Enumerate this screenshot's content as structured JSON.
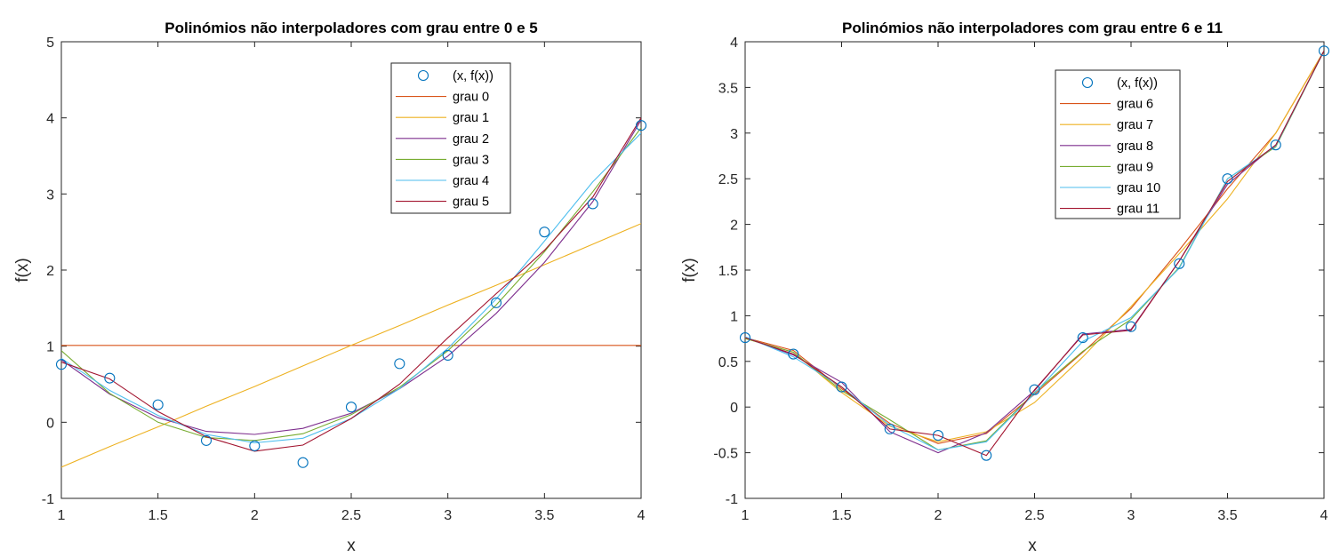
{
  "chart_data": [
    {
      "type": "line",
      "title": "Polinómios não interpoladores com grau entre 0 e 5",
      "xlabel": "x",
      "ylabel": "f(x)",
      "xlim": [
        1,
        4
      ],
      "ylim": [
        -1,
        5
      ],
      "xticks": [
        1,
        1.5,
        2,
        2.5,
        3,
        3.5,
        4
      ],
      "xtick_labels": [
        "1",
        "1.5",
        "2",
        "2.5",
        "3",
        "3.5",
        "4"
      ],
      "yticks": [
        -1,
        0,
        1,
        2,
        3,
        4,
        5
      ],
      "ytick_labels": [
        "-1",
        "0",
        "1",
        "2",
        "3",
        "4",
        "5"
      ],
      "grid": false,
      "legend_position": "top-right",
      "points": {
        "name": "(x, f(x))",
        "color": "#0072BD",
        "x": [
          1,
          1.25,
          1.5,
          1.75,
          2,
          2.25,
          2.5,
          2.75,
          3,
          3.25,
          3.5,
          3.75,
          4
        ],
        "y": [
          0.76,
          0.58,
          0.23,
          -0.24,
          -0.31,
          -0.53,
          0.2,
          0.77,
          0.88,
          1.57,
          2.5,
          2.87,
          3.9
        ]
      },
      "x": [
        1,
        1.25,
        1.5,
        1.75,
        2,
        2.25,
        2.5,
        2.75,
        3,
        3.25,
        3.5,
        3.75,
        4
      ],
      "series": [
        {
          "name": "grau 0",
          "color": "#D95319",
          "values": [
            1.01,
            1.01,
            1.01,
            1.01,
            1.01,
            1.01,
            1.01,
            1.01,
            1.01,
            1.01,
            1.01,
            1.01,
            1.01
          ]
        },
        {
          "name": "grau 1",
          "color": "#EDB120",
          "values": [
            -0.59,
            -0.32,
            -0.06,
            0.21,
            0.47,
            0.74,
            1.01,
            1.27,
            1.54,
            1.8,
            2.07,
            2.34,
            2.61
          ]
        },
        {
          "name": "grau 2",
          "color": "#7E2F8E",
          "values": [
            0.82,
            0.37,
            0.06,
            -0.12,
            -0.16,
            -0.08,
            0.12,
            0.44,
            0.87,
            1.43,
            2.1,
            2.9,
            3.97
          ]
        },
        {
          "name": "grau 3",
          "color": "#77AC30",
          "values": [
            0.94,
            0.38,
            0.0,
            -0.2,
            -0.24,
            -0.15,
            0.1,
            0.46,
            0.94,
            1.54,
            2.24,
            3.03,
            3.87
          ]
        },
        {
          "name": "grau 4",
          "color": "#4DBEEE",
          "values": [
            0.84,
            0.42,
            0.09,
            -0.16,
            -0.27,
            -0.21,
            0.05,
            0.44,
            0.97,
            1.62,
            2.38,
            3.16,
            3.8
          ]
        },
        {
          "name": "grau 5",
          "color": "#A2142F",
          "values": [
            0.79,
            0.57,
            0.14,
            -0.19,
            -0.38,
            -0.3,
            0.05,
            0.5,
            1.11,
            1.69,
            2.26,
            2.96,
            4.0
          ]
        }
      ]
    },
    {
      "type": "line",
      "title": "Polinómios não interpoladores com grau entre 6 e 11",
      "xlabel": "x",
      "ylabel": "f(x)",
      "xlim": [
        1,
        4
      ],
      "ylim": [
        -1,
        4
      ],
      "xticks": [
        1,
        1.5,
        2,
        2.5,
        3,
        3.5,
        4
      ],
      "xtick_labels": [
        "1",
        "1.5",
        "2",
        "2.5",
        "3",
        "3.5",
        "4"
      ],
      "yticks": [
        -1,
        -0.5,
        0,
        0.5,
        1,
        1.5,
        2,
        2.5,
        3,
        3.5,
        4
      ],
      "ytick_labels": [
        "-1",
        "-0.5",
        "0",
        "0.5",
        "1",
        "1.5",
        "2",
        "2.5",
        "3",
        "3.5",
        "4"
      ],
      "grid": false,
      "legend_position": "top-right",
      "points": {
        "name": "(x, f(x))",
        "color": "#0072BD",
        "x": [
          1,
          1.25,
          1.5,
          1.75,
          2,
          2.25,
          2.5,
          2.75,
          3,
          3.25,
          3.5,
          3.75,
          4
        ],
        "y": [
          0.76,
          0.58,
          0.22,
          -0.24,
          -0.31,
          -0.53,
          0.19,
          0.76,
          0.88,
          1.57,
          2.5,
          2.87,
          3.9
        ]
      },
      "x": [
        1,
        1.25,
        1.5,
        1.75,
        2,
        2.25,
        2.5,
        2.75,
        3,
        3.25,
        3.5,
        3.75,
        4
      ],
      "series": [
        {
          "name": "grau 6",
          "color": "#D95319",
          "values": [
            0.76,
            0.62,
            0.2,
            -0.18,
            -0.4,
            -0.29,
            0.14,
            0.6,
            1.08,
            1.72,
            2.39,
            3.0,
            3.9
          ]
        },
        {
          "name": "grau 7",
          "color": "#EDB120",
          "values": [
            0.75,
            0.6,
            0.16,
            -0.21,
            -0.38,
            -0.27,
            0.05,
            0.55,
            1.1,
            1.68,
            2.28,
            3.0,
            3.9
          ]
        },
        {
          "name": "grau 8",
          "color": "#7E2F8E",
          "values": [
            0.76,
            0.57,
            0.27,
            -0.27,
            -0.5,
            -0.28,
            0.18,
            0.8,
            0.85,
            1.6,
            2.44,
            2.87,
            3.9
          ]
        },
        {
          "name": "grau 9",
          "color": "#77AC30",
          "values": [
            0.75,
            0.6,
            0.18,
            -0.14,
            -0.47,
            -0.37,
            0.16,
            0.61,
            0.96,
            1.53,
            2.5,
            2.85,
            3.9
          ]
        },
        {
          "name": "grau 10",
          "color": "#4DBEEE",
          "values": [
            0.77,
            0.55,
            0.22,
            -0.2,
            -0.47,
            -0.38,
            0.15,
            0.72,
            0.98,
            1.52,
            2.5,
            2.86,
            3.9
          ]
        },
        {
          "name": "grau 11",
          "color": "#A2142F",
          "values": [
            0.76,
            0.58,
            0.22,
            -0.24,
            -0.31,
            -0.53,
            0.19,
            0.79,
            0.84,
            1.6,
            2.47,
            2.87,
            3.9
          ]
        }
      ]
    }
  ]
}
